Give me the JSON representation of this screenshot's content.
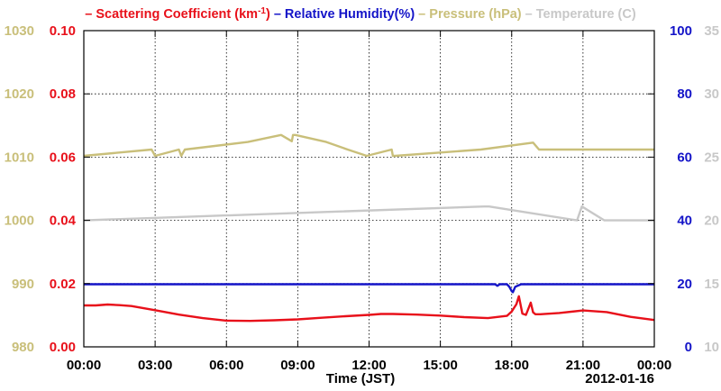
{
  "chart_data": {
    "type": "line",
    "date_label": "2012-01-16",
    "xlabel": "Time (JST)",
    "x_ticks": [
      "00:00",
      "03:00",
      "06:00",
      "09:00",
      "12:00",
      "15:00",
      "18:00",
      "21:00",
      "00:00"
    ],
    "x_range_hours": [
      0,
      24
    ],
    "grid": true,
    "legend_position": "top",
    "legend": [
      {
        "prefix": "–",
        "text": "Scattering Coefficient (km",
        "sup": "-1",
        "suffix": ")",
        "color": "#e8101a"
      },
      {
        "prefix": "–",
        "text": "Relative Humidity(%)",
        "sup": "",
        "suffix": "",
        "color": "#1414c8"
      },
      {
        "prefix": "–",
        "text": "Pressure (hPa)",
        "sup": "",
        "suffix": "",
        "color": "#c9bf7a"
      },
      {
        "prefix": "–",
        "text": "Temperature (",
        "sup": "",
        "suffix": "C)",
        "color": "#c8c8c8"
      }
    ],
    "axes": {
      "pressure": {
        "side": "left",
        "ticks": [
          "1030",
          "1020",
          "1010",
          "1000",
          "990",
          "980"
        ],
        "ylim": [
          980,
          1030
        ],
        "color": "#c9bf7a"
      },
      "scattering": {
        "side": "left",
        "ticks": [
          "0.10",
          "0.08",
          "0.06",
          "0.04",
          "0.02",
          "0.00"
        ],
        "ylim": [
          0,
          0.1
        ],
        "color": "#e8101a"
      },
      "humidity": {
        "side": "right",
        "ticks": [
          "100",
          "80",
          "60",
          "40",
          "20",
          "0"
        ],
        "ylim": [
          0,
          100
        ],
        "color": "#1414c8"
      },
      "temperature": {
        "side": "right",
        "ticks": [
          "35",
          "30",
          "25",
          "20",
          "15",
          "10"
        ],
        "ylim": [
          10,
          35
        ],
        "color": "#c8c8c8"
      }
    },
    "series": [
      {
        "name": "Pressure (hPa)",
        "axis": "pressure",
        "color": "#c9bf7a",
        "step": true,
        "x": [
          0,
          2.85,
          3.0,
          4.0,
          4.1,
          4.25,
          6.9,
          8.3,
          8.75,
          8.8,
          8.9,
          10.2,
          11.1,
          11.9,
          12.95,
          13.0,
          13.1,
          16.7,
          18.9,
          19.15,
          24
        ],
        "y": [
          1010.2,
          1011.2,
          1010.2,
          1011.2,
          1010.2,
          1011.2,
          1012.4,
          1013.5,
          1012.5,
          1013.5,
          1013.5,
          1012.4,
          1011.2,
          1010.2,
          1011.2,
          1010.2,
          1010.2,
          1011.2,
          1012.3,
          1011.2,
          1011.2
        ]
      },
      {
        "name": "Temperature (C)",
        "axis": "temperature",
        "color": "#c8c8c8",
        "step": true,
        "x": [
          0,
          16.85,
          17.05,
          20.75,
          20.95,
          21.9,
          24
        ],
        "y": [
          20,
          21.1,
          21.1,
          20,
          21.1,
          20,
          20
        ]
      },
      {
        "name": "Relative Humidity(%)",
        "axis": "humidity",
        "color": "#1414c8",
        "step": false,
        "x": [
          0,
          17.3,
          17.4,
          17.5,
          17.8,
          17.9,
          18.0,
          18.05,
          18.15,
          18.4,
          24
        ],
        "y": [
          19.8,
          19.8,
          19.3,
          19.8,
          19.8,
          19.0,
          17.6,
          17.3,
          19.0,
          19.8,
          19.8
        ]
      },
      {
        "name": "Scattering Coefficient (km-1)",
        "axis": "scattering",
        "color": "#e8101a",
        "step": false,
        "x": [
          0,
          0.5,
          1.0,
          1.5,
          2,
          3,
          4,
          5,
          6,
          7,
          8,
          9,
          10,
          11,
          12,
          12.5,
          13,
          14,
          15,
          16,
          17,
          17.8,
          18.0,
          18.2,
          18.3,
          18.45,
          18.6,
          18.8,
          18.9,
          19.0,
          19.2,
          20,
          21,
          22,
          23,
          24
        ],
        "y": [
          0.0131,
          0.0131,
          0.0134,
          0.0132,
          0.0129,
          0.0116,
          0.0102,
          0.0091,
          0.0083,
          0.0082,
          0.0084,
          0.0087,
          0.0092,
          0.0097,
          0.0101,
          0.0104,
          0.0104,
          0.0102,
          0.0099,
          0.0094,
          0.0091,
          0.0098,
          0.0112,
          0.0135,
          0.016,
          0.0105,
          0.0101,
          0.014,
          0.0109,
          0.0103,
          0.0103,
          0.0107,
          0.0115,
          0.011,
          0.0095,
          0.0085
        ]
      }
    ]
  }
}
